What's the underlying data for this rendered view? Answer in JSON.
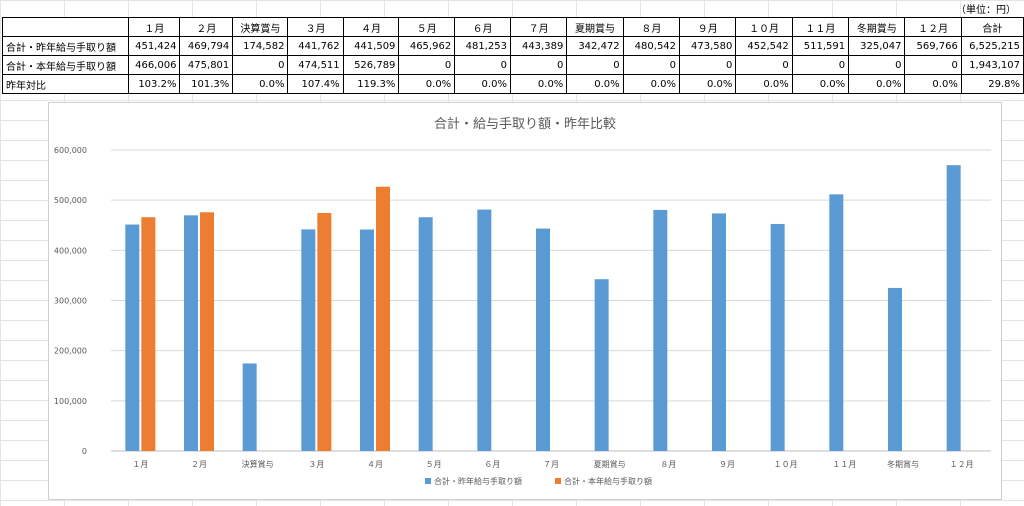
{
  "unit_note": "（単位：円）",
  "table": {
    "columns": [
      "１月",
      "２月",
      "決算賞与",
      "３月",
      "４月",
      "５月",
      "６月",
      "７月",
      "夏期賞与",
      "８月",
      "９月",
      "１０月",
      "１１月",
      "冬期賞与",
      "１２月",
      "合計"
    ],
    "rows": [
      {
        "label": "合計・昨年給与手取り額",
        "cells": [
          "451,424",
          "469,794",
          "174,582",
          "441,762",
          "441,509",
          "465,962",
          "481,253",
          "443,389",
          "342,472",
          "480,542",
          "473,580",
          "452,542",
          "511,591",
          "325,047",
          "569,766",
          "6,525,215"
        ]
      },
      {
        "label": "合計・本年給与手取り額",
        "cells": [
          "466,006",
          "475,801",
          "0",
          "474,511",
          "526,789",
          "0",
          "0",
          "0",
          "0",
          "0",
          "0",
          "0",
          "0",
          "0",
          "0",
          "1,943,107"
        ]
      },
      {
        "label": "昨年対比",
        "cells": [
          "103.2%",
          "101.3%",
          "0.0%",
          "107.4%",
          "119.3%",
          "0.0%",
          "0.0%",
          "0.0%",
          "0.0%",
          "0.0%",
          "0.0%",
          "0.0%",
          "0.0%",
          "0.0%",
          "0.0%",
          "29.8%"
        ]
      }
    ]
  },
  "chart_data": {
    "type": "bar",
    "title": "合計・給与手取り額・昨年比較",
    "categories": [
      "１月",
      "２月",
      "決算賞与",
      "３月",
      "４月",
      "５月",
      "６月",
      "７月",
      "夏期賞与",
      "８月",
      "９月",
      "１０月",
      "１１月",
      "冬期賞与",
      "１２月"
    ],
    "series": [
      {
        "name": "合計・昨年給与手取り額",
        "color": "#5b9bd5",
        "values": [
          451424,
          469794,
          174582,
          441762,
          441509,
          465962,
          481253,
          443389,
          342472,
          480542,
          473580,
          452542,
          511591,
          325047,
          569766
        ]
      },
      {
        "name": "合計・本年給与手取り額",
        "color": "#ed7d31",
        "values": [
          466006,
          475801,
          0,
          474511,
          526789,
          0,
          0,
          0,
          0,
          0,
          0,
          0,
          0,
          0,
          0
        ]
      }
    ],
    "ylim": [
      0,
      600000
    ],
    "yticks": [
      0,
      100000,
      200000,
      300000,
      400000,
      500000,
      600000
    ],
    "ytick_labels": [
      "0",
      "100,000",
      "200,000",
      "300,000",
      "400,000",
      "500,000",
      "600,000"
    ],
    "grid": true,
    "legend": "bottom",
    "xlabel": "",
    "ylabel": ""
  }
}
